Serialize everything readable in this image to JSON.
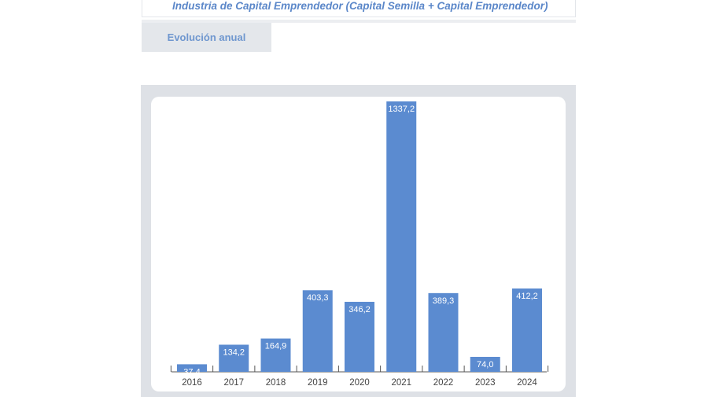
{
  "header": {
    "title": "Industria de Capital Emprendedor (Capital Semilla + Capital Emprendedor)"
  },
  "tabs": [
    {
      "label": "Evolución anual"
    }
  ],
  "colors": {
    "bar": "#5b8bd0",
    "panel": "#dee1e6",
    "title": "#5b87c9",
    "tab_text": "#6f97cf"
  },
  "chart_data": {
    "type": "bar",
    "categories": [
      "2016",
      "2017",
      "2018",
      "2019",
      "2020",
      "2021",
      "2022",
      "2023",
      "2024"
    ],
    "values": [
      37.4,
      134.2,
      164.9,
      403.3,
      346.2,
      1337.2,
      389.3,
      74.0,
      412.2
    ],
    "data_labels": [
      "37,4",
      "134,2",
      "164,9",
      "403,3",
      "346,2",
      "1337,2",
      "389,3",
      "74,0",
      "412,2"
    ],
    "title": "",
    "xlabel": "",
    "ylabel": "",
    "ylim": [
      0,
      1337.2
    ],
    "grid": false,
    "legend": "none"
  }
}
